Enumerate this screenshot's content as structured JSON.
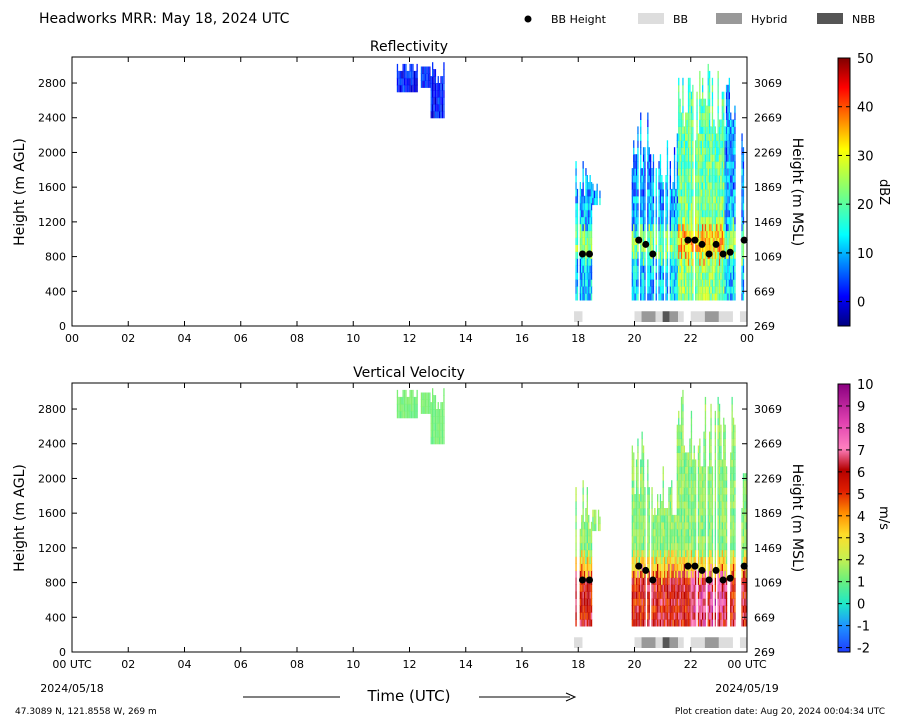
{
  "header": {
    "title": "Headworks MRR:  May 18, 2024 UTC",
    "legend": [
      {
        "label": "BB Height",
        "kind": "dot",
        "color": "#000000"
      },
      {
        "label": "BB",
        "kind": "box",
        "color": "#dddddd"
      },
      {
        "label": "Hybrid",
        "kind": "box",
        "color": "#999999"
      },
      {
        "label": "NBB",
        "kind": "box",
        "color": "#555555"
      }
    ]
  },
  "footer": {
    "time_label": "Time (UTC)",
    "date_start": "2024/05/18",
    "date_end": "2024/05/19",
    "location": "47.3089 N, 121.8558 W, 269 m",
    "creation": "Plot creation date: Aug 20, 2024 00:04:34 UTC"
  },
  "chart_data": [
    {
      "type": "heatmap",
      "title": "Reflectivity",
      "ylabel": "Height (m AGL)",
      "ylabel_right": "Height (m MSL)",
      "xticks": [
        "00",
        "02",
        "04",
        "06",
        "08",
        "10",
        "12",
        "14",
        "16",
        "18",
        "20",
        "22",
        "00"
      ],
      "xlim": [
        0,
        24
      ],
      "ylim": [
        0,
        3100
      ],
      "yticks_left": [
        "0",
        "400",
        "800",
        "1200",
        "1600",
        "2000",
        "2400",
        "2800"
      ],
      "yticks_right": [
        "269",
        "669",
        "1069",
        "1469",
        "1869",
        "2269",
        "2669",
        "3069"
      ],
      "colorbar": {
        "label": "dBZ",
        "ticks": [
          "0",
          "10",
          "20",
          "30",
          "40",
          "50"
        ],
        "range": [
          -5,
          50
        ],
        "colormap": "jet"
      },
      "bb_heights": [
        [
          18.15,
          830
        ],
        [
          18.4,
          830
        ],
        [
          20.15,
          990
        ],
        [
          20.4,
          940
        ],
        [
          20.65,
          830
        ],
        [
          21.9,
          990
        ],
        [
          22.15,
          990
        ],
        [
          22.4,
          940
        ],
        [
          22.65,
          830
        ],
        [
          22.9,
          940
        ],
        [
          23.15,
          830
        ],
        [
          23.4,
          850
        ],
        [
          23.9,
          990
        ]
      ],
      "bb_class_segments": [
        [
          17.85,
          18.15,
          "BB"
        ],
        [
          20.0,
          20.25,
          "BB"
        ],
        [
          20.25,
          20.75,
          "Hybrid"
        ],
        [
          20.75,
          21.0,
          "BB"
        ],
        [
          21.0,
          21.25,
          "NBB"
        ],
        [
          21.25,
          21.55,
          "Hybrid"
        ],
        [
          21.55,
          21.75,
          "BB"
        ],
        [
          22.0,
          22.5,
          "BB"
        ],
        [
          22.5,
          23.0,
          "Hybrid"
        ],
        [
          23.0,
          23.5,
          "BB"
        ],
        [
          23.75,
          24.0,
          "BB"
        ]
      ]
    },
    {
      "type": "heatmap",
      "title": "Vertical Velocity",
      "ylabel": "Height (m AGL)",
      "ylabel_right": "Height (m MSL)",
      "xticks": [
        "00 UTC",
        "02",
        "04",
        "06",
        "08",
        "10",
        "12",
        "14",
        "16",
        "18",
        "20",
        "22",
        "00 UTC"
      ],
      "xlim": [
        0,
        24
      ],
      "ylim": [
        0,
        3100
      ],
      "yticks_left": [
        "0",
        "400",
        "800",
        "1200",
        "1600",
        "2000",
        "2400",
        "2800"
      ],
      "yticks_right": [
        "269",
        "669",
        "1069",
        "1469",
        "1869",
        "2269",
        "2669",
        "3069"
      ],
      "colorbar": {
        "label": "m/s",
        "ticks": [
          "-2",
          "-1",
          "0",
          "1",
          "2",
          "3",
          "4",
          "5",
          "6",
          "7",
          "8",
          "9",
          "10"
        ],
        "range": [
          -2.2,
          10
        ],
        "colormap": "velocity"
      },
      "bb_heights": [
        [
          18.15,
          830
        ],
        [
          18.4,
          830
        ],
        [
          20.15,
          990
        ],
        [
          20.4,
          940
        ],
        [
          20.65,
          830
        ],
        [
          21.9,
          990
        ],
        [
          22.15,
          990
        ],
        [
          22.4,
          940
        ],
        [
          22.65,
          830
        ],
        [
          22.9,
          940
        ],
        [
          23.15,
          830
        ],
        [
          23.4,
          850
        ],
        [
          23.9,
          990
        ]
      ],
      "bb_class_segments": [
        [
          17.85,
          18.15,
          "BB"
        ],
        [
          20.0,
          20.25,
          "BB"
        ],
        [
          20.25,
          20.75,
          "Hybrid"
        ],
        [
          20.75,
          21.0,
          "BB"
        ],
        [
          21.0,
          21.25,
          "NBB"
        ],
        [
          21.25,
          21.55,
          "Hybrid"
        ],
        [
          21.55,
          21.75,
          "BB"
        ],
        [
          22.0,
          22.5,
          "BB"
        ],
        [
          22.5,
          23.0,
          "Hybrid"
        ],
        [
          23.0,
          23.5,
          "BB"
        ],
        [
          23.75,
          24.0,
          "BB"
        ]
      ]
    }
  ]
}
